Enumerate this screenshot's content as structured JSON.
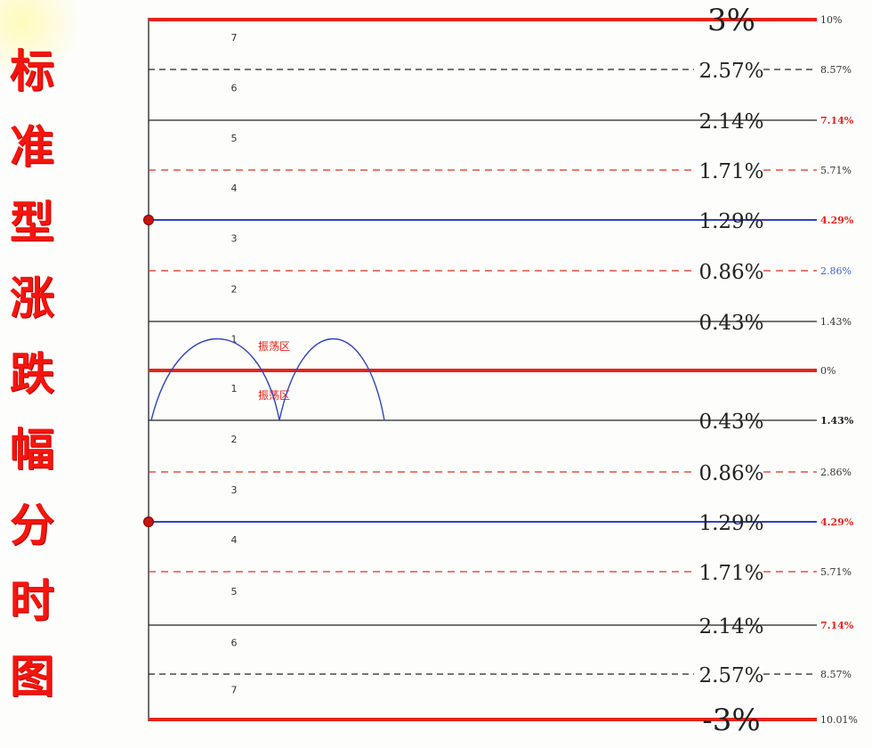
{
  "title_chars": [
    "标",
    "准",
    "型",
    "涨",
    "跌",
    "幅",
    "分",
    "时",
    "图"
  ],
  "zone_label": "振荡区",
  "levels": [
    {
      "mid": "3%",
      "right": "10%",
      "style": "red-solid",
      "right_color": "#333333",
      "right_bold": false
    },
    {
      "mid": "2.57%",
      "right": "8.57%",
      "style": "black-dashed",
      "right_color": "#333333",
      "right_bold": false
    },
    {
      "mid": "2.14%",
      "right": "7.14%",
      "style": "black-solid",
      "right_color": "#e8231b",
      "right_bold": true
    },
    {
      "mid": "1.71%",
      "right": "5.71%",
      "style": "red-dashed",
      "right_color": "#333333",
      "right_bold": false
    },
    {
      "mid": "1.29%",
      "right": "4.29%",
      "style": "blue-solid",
      "right_color": "#e8231b",
      "right_bold": true
    },
    {
      "mid": "0.86%",
      "right": "2.86%",
      "style": "red-dashed",
      "right_color": "#3a5fd8",
      "right_bold": false
    },
    {
      "mid": "0.43%",
      "right": "1.43%",
      "style": "black-solid",
      "right_color": "#333333",
      "right_bold": false
    },
    {
      "mid": "",
      "right": "0%",
      "style": "red-solid",
      "right_color": "#333333",
      "right_bold": false
    },
    {
      "mid": "0.43%",
      "right": "1.43%",
      "style": "black-solid",
      "right_color": "#222222",
      "right_bold": true
    },
    {
      "mid": "0.86%",
      "right": "2.86%",
      "style": "red-dashed",
      "right_color": "#333333",
      "right_bold": false
    },
    {
      "mid": "1.29%",
      "right": "4.29%",
      "style": "blue-solid",
      "right_color": "#e8231b",
      "right_bold": true
    },
    {
      "mid": "1.71%",
      "right": "5.71%",
      "style": "red-dashed",
      "right_color": "#333333",
      "right_bold": false
    },
    {
      "mid": "2.14%",
      "right": "7.14%",
      "style": "black-solid",
      "right_color": "#e8231b",
      "right_bold": true
    },
    {
      "mid": "2.57%",
      "right": "8.57%",
      "style": "black-dashed",
      "right_color": "#333333",
      "right_bold": false
    },
    {
      "mid": "-3%",
      "right": "10.01%",
      "style": "red-solid",
      "right_color": "#333333",
      "right_bold": false
    }
  ],
  "band_numbers": [
    "7",
    "6",
    "5",
    "4",
    "3",
    "2",
    "1",
    "1",
    "2",
    "3",
    "4",
    "5",
    "6",
    "7"
  ],
  "marked_levels": [
    "1.29%",
    "-1.29%"
  ]
}
